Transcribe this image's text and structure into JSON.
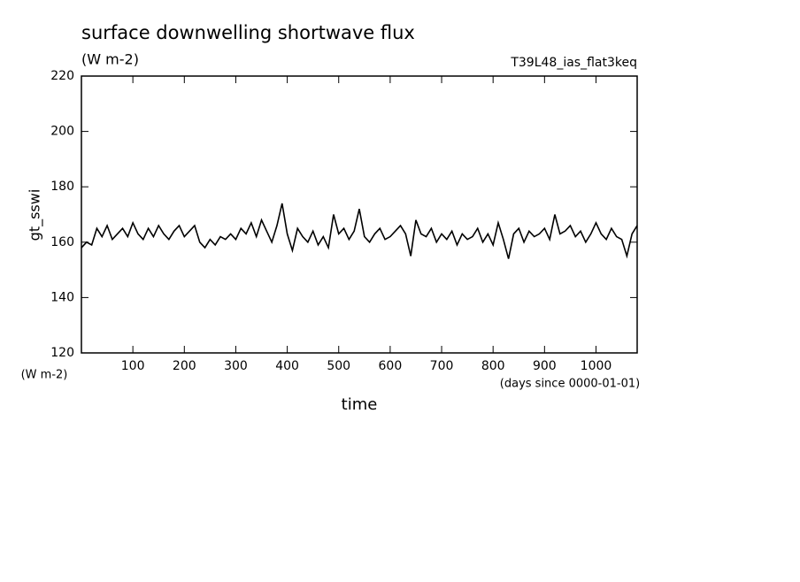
{
  "chart_data": {
    "type": "line",
    "title": "surface downwelling shortwave flux",
    "subtitle": "(W m-2)",
    "annotation": "T39L48_ias_flat3keq",
    "y_label": "gt_sswi",
    "y_unit": "(W m-2)",
    "x_unit": "(days since 0000-01-01)",
    "x_label": "time",
    "x": [
      0,
      10,
      20,
      30,
      40,
      50,
      60,
      70,
      80,
      90,
      100,
      110,
      120,
      130,
      140,
      150,
      160,
      170,
      180,
      190,
      200,
      210,
      220,
      230,
      240,
      250,
      260,
      270,
      280,
      290,
      300,
      310,
      320,
      330,
      340,
      350,
      360,
      370,
      380,
      390,
      400,
      410,
      420,
      430,
      440,
      450,
      460,
      470,
      480,
      490,
      500,
      510,
      520,
      530,
      540,
      550,
      560,
      570,
      580,
      590,
      600,
      610,
      620,
      630,
      640,
      650,
      660,
      670,
      680,
      690,
      700,
      710,
      720,
      730,
      740,
      750,
      760,
      770,
      780,
      790,
      800,
      810,
      820,
      830,
      840,
      850,
      860,
      870,
      880,
      890,
      900,
      910,
      920,
      930,
      940,
      950,
      960,
      970,
      980,
      990,
      1000,
      1010,
      1020,
      1030,
      1040,
      1050,
      1060,
      1070,
      1080
    ],
    "series": [
      {
        "color": "#000000",
        "values": [
          158,
          160,
          159,
          165,
          162,
          166,
          161,
          163,
          165,
          162,
          167,
          163,
          161,
          165,
          162,
          166,
          163,
          161,
          164,
          166,
          162,
          164,
          166,
          160,
          158,
          161,
          159,
          162,
          161,
          163,
          161,
          165,
          163,
          167,
          162,
          168,
          164,
          160,
          166,
          174,
          163,
          157,
          165,
          162,
          160,
          164,
          159,
          162,
          158,
          170,
          163,
          165,
          161,
          164,
          172,
          162,
          160,
          163,
          165,
          161,
          162,
          164,
          166,
          163,
          155,
          168,
          163,
          162,
          165,
          160,
          163,
          161,
          164,
          159,
          163,
          161,
          162,
          165,
          160,
          163,
          159,
          167,
          161,
          154,
          163,
          165,
          160,
          164,
          162,
          163,
          165,
          161,
          170,
          163,
          164,
          166,
          162,
          164,
          160,
          163,
          167,
          163,
          161,
          165,
          162,
          161,
          155,
          163,
          166
        ]
      }
    ],
    "xlim": [
      0,
      1080
    ],
    "ylim": [
      120,
      220
    ],
    "xticks": [
      100,
      200,
      300,
      400,
      500,
      600,
      700,
      800,
      900,
      1000
    ],
    "yticks": [
      120,
      140,
      160,
      180,
      200,
      220
    ]
  }
}
